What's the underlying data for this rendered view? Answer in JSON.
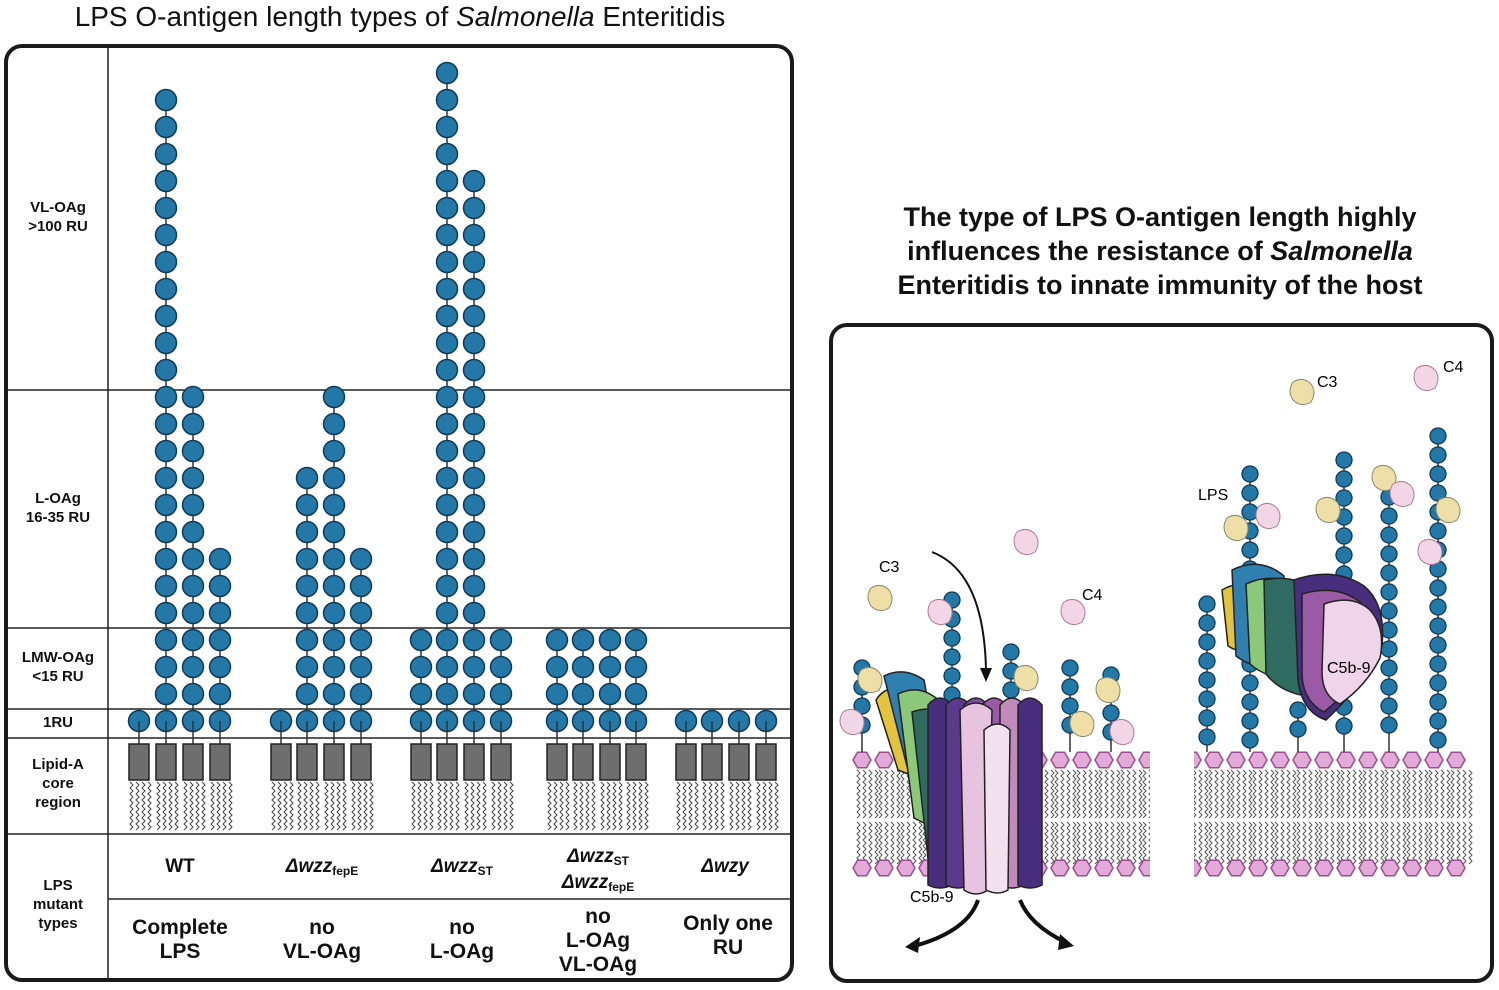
{
  "left": {
    "title_main": "LPS O-antigen length types of ",
    "title_italic": "Salmonella",
    "title_end": " Enteritidis",
    "row_labels": {
      "vl_line1": "VL-OAg",
      "vl_line2": ">100 RU",
      "l_line1": "L-OAg",
      "l_line2": "16-35 RU",
      "lmw_line1": "LMW-OAg",
      "lmw_line2": "<15 RU",
      "one_ru": "1RU",
      "lipid_line1": "Lipid-A",
      "lipid_line2": "core",
      "lipid_line3": "region",
      "types_line1": "LPS",
      "types_line2": "mutant",
      "types_line3": "types"
    },
    "mutants": [
      {
        "plain": "WT",
        "italic": "",
        "sub": "",
        "italic2": "",
        "sub2": "",
        "desc1": "Complete",
        "desc2": "LPS",
        "desc3": ""
      },
      {
        "plain": "",
        "italic": "Δwzz",
        "sub": "fepE",
        "italic2": "",
        "sub2": "",
        "desc1": "no",
        "desc2": "VL-OAg",
        "desc3": ""
      },
      {
        "plain": "",
        "italic": "Δwzz",
        "sub": "ST",
        "italic2": "",
        "sub2": "",
        "desc1": "no",
        "desc2": "L-OAg",
        "desc3": ""
      },
      {
        "plain": "",
        "italic": "Δwzz",
        "sub": "ST",
        "italic2": "Δwzz",
        "sub2": "fepE",
        "desc1": "no",
        "desc2": "L-OAg",
        "desc3": "VL-OAg"
      },
      {
        "plain": "",
        "italic": "Δwzy",
        "sub": "",
        "italic2": "",
        "sub2": "",
        "desc1": "Only one",
        "desc2": "RU",
        "desc3": ""
      }
    ]
  },
  "right": {
    "title_line1": "The type of LPS O-antigen length highly",
    "title_line2a": "influences the resistance of ",
    "title_line2_italic": "Salmonella",
    "title_line3": "Enteritidis to innate immunity of the host",
    "labels": {
      "c3_left": "C3",
      "c4_left": "C4",
      "c5b9_left": "C5b-9",
      "c3_right": "C3",
      "c4_right": "C4",
      "lps": "LPS",
      "c5b9_right": "C5b-9"
    }
  },
  "colors": {
    "bead": "#2478a8",
    "bead_stroke": "#0d3a57",
    "core": "#6e6e6e",
    "head": "#e3a9d8",
    "head_stroke": "#9a4d8e",
    "c3": "#eedfa6",
    "c4": "#f3d6e6"
  }
}
